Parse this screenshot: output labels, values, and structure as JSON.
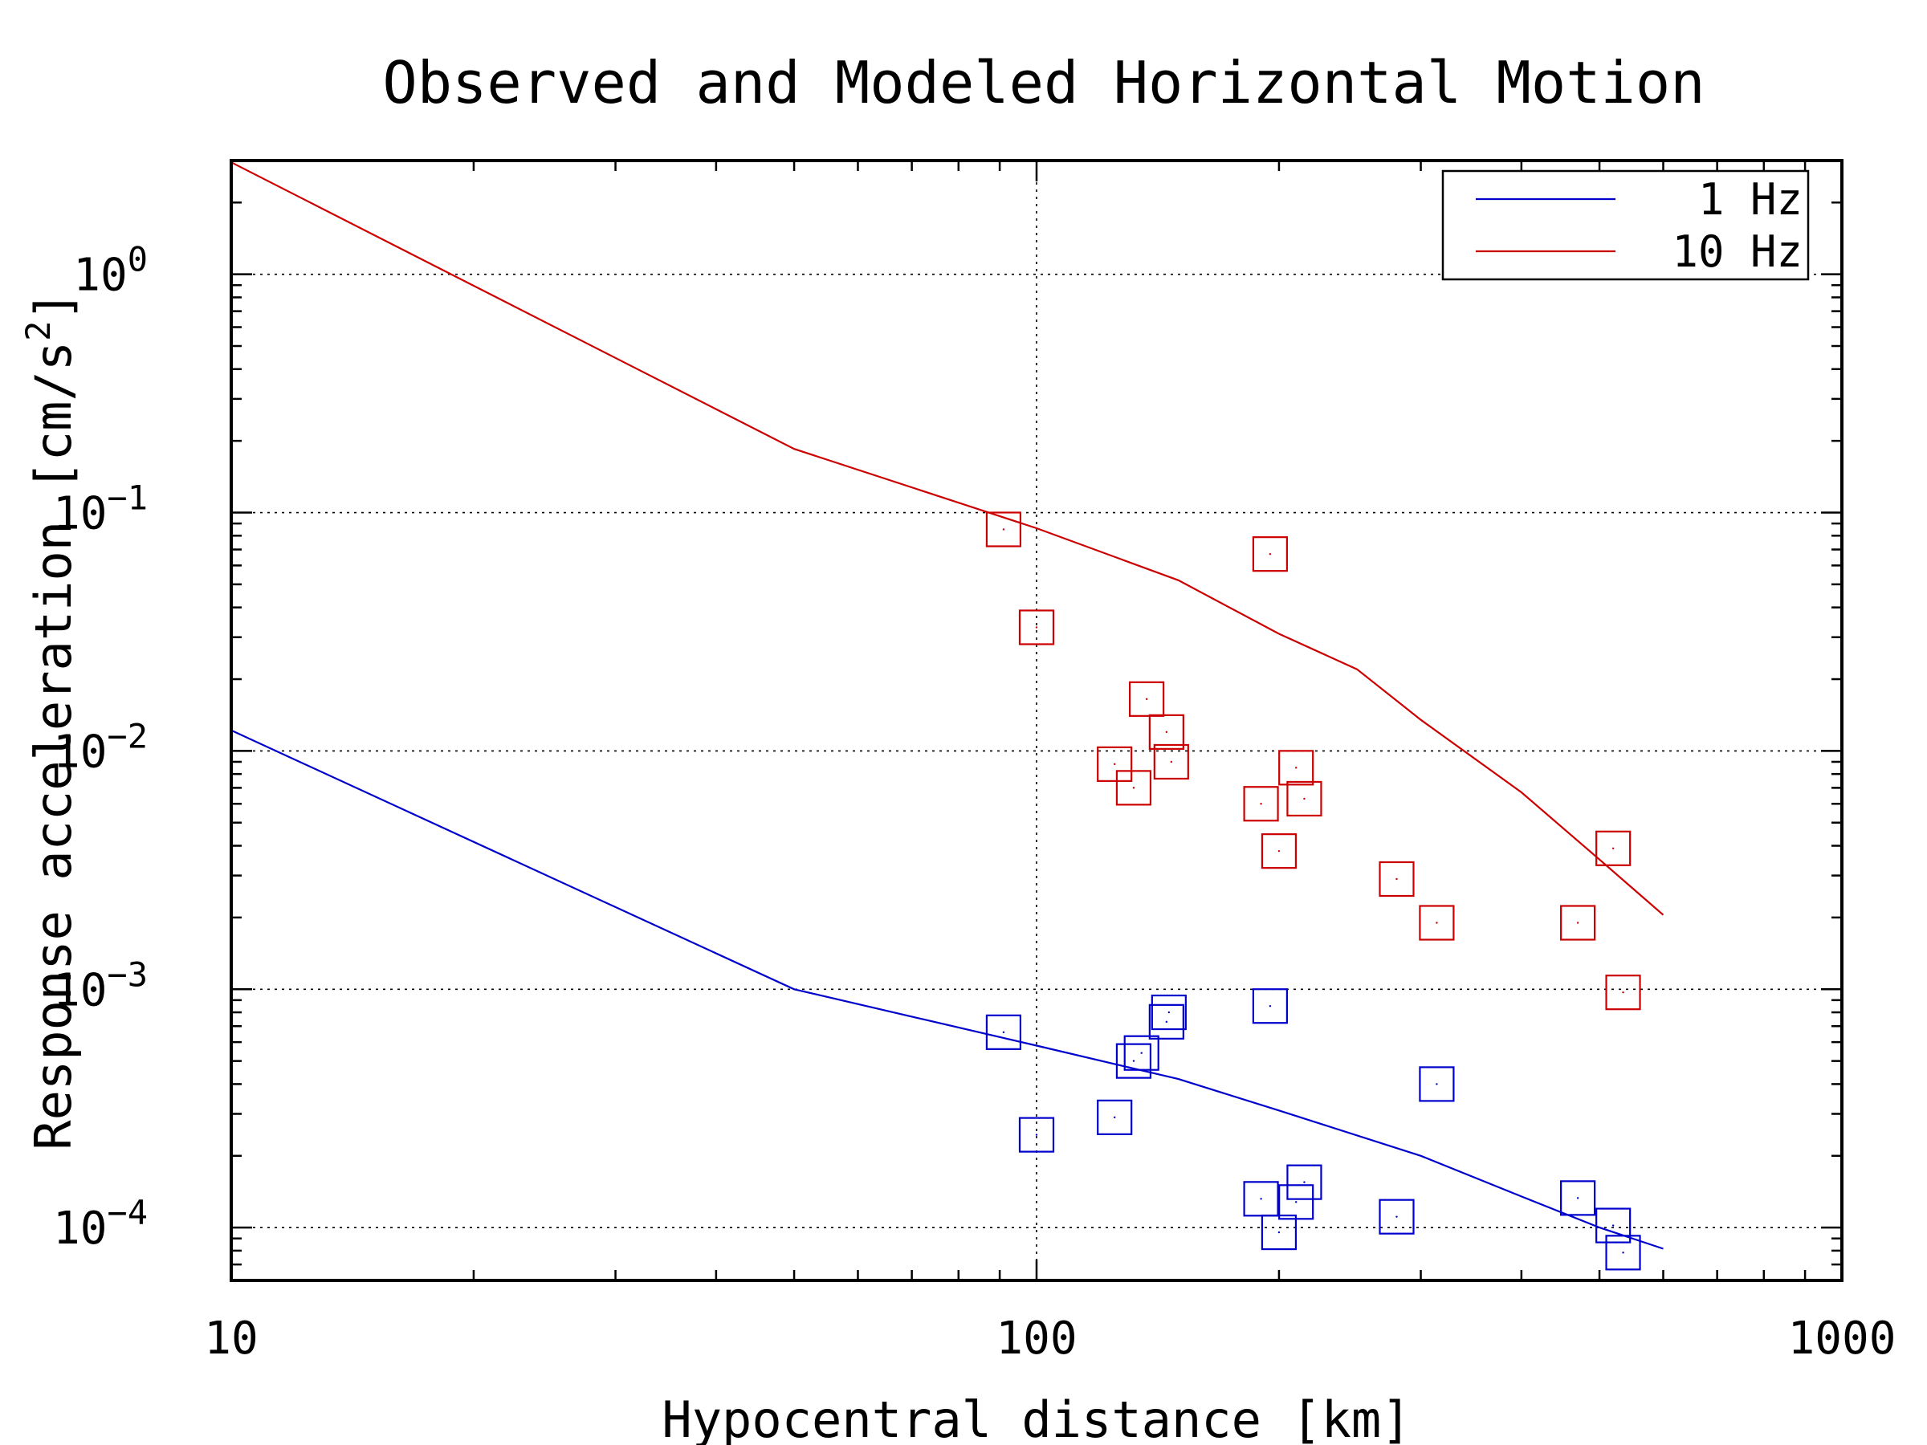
{
  "chart_data": {
    "type": "scatter",
    "title": "Observed and Modeled Horizontal Motion",
    "xlabel": "Hypocentral distance [km]",
    "ylabel": "Response acceleration [cm/s",
    "ylabel_sup": "2",
    "ylabel_close": "]",
    "xscale": "log",
    "yscale": "log",
    "xlim": [
      10,
      1000
    ],
    "ylim": [
      6e-05,
      3.0
    ],
    "x_ticks": [
      {
        "value": 10,
        "label": "10"
      },
      {
        "value": 100,
        "label": "100"
      },
      {
        "value": 1000,
        "label": "1000"
      }
    ],
    "y_ticks": [
      {
        "value": 1,
        "base": "10",
        "exp": "0"
      },
      {
        "value": 0.1,
        "base": "10",
        "exp": "−1"
      },
      {
        "value": 0.01,
        "base": "10",
        "exp": "−2"
      },
      {
        "value": 0.001,
        "base": "10",
        "exp": "−3"
      },
      {
        "value": 0.0001,
        "base": "10",
        "exp": "−4"
      }
    ],
    "grid": true,
    "legend_position": "top-right",
    "series": [
      {
        "name": "1 Hz",
        "color": "#0000cc",
        "model_line": [
          [
            10,
            0.0122
          ],
          [
            50,
            0.001
          ],
          [
            100,
            0.00058
          ],
          [
            150,
            0.00042
          ],
          [
            200,
            0.00031
          ],
          [
            300,
            0.0002
          ],
          [
            400,
            0.000135
          ],
          [
            500,
            0.0001
          ],
          [
            600,
            8.15e-05
          ]
        ],
        "observed": [
          [
            91,
            0.00066
          ],
          [
            100,
            0.000245
          ],
          [
            125,
            0.00029
          ],
          [
            132,
            0.0005
          ],
          [
            135,
            0.00054
          ],
          [
            145,
            0.00073
          ],
          [
            146,
            0.0008
          ],
          [
            190,
            0.000132
          ],
          [
            200,
            9.55e-05
          ],
          [
            195,
            0.00085
          ],
          [
            210,
            0.000128
          ],
          [
            215,
            0.000155
          ],
          [
            280,
            0.000111
          ],
          [
            314,
            0.0004
          ],
          [
            470,
            0.000133
          ],
          [
            520,
            0.000102
          ],
          [
            535,
            7.85e-05
          ]
        ]
      },
      {
        "name": "10 Hz",
        "color": "#cc0000",
        "model_line": [
          [
            10,
            2.95
          ],
          [
            50,
            0.185
          ],
          [
            100,
            0.086
          ],
          [
            150,
            0.052
          ],
          [
            200,
            0.031
          ],
          [
            250,
            0.022
          ],
          [
            300,
            0.0135
          ],
          [
            400,
            0.0067
          ],
          [
            500,
            0.0035
          ],
          [
            600,
            0.00205
          ]
        ],
        "observed": [
          [
            91,
            0.085
          ],
          [
            100,
            0.033
          ],
          [
            125,
            0.0088
          ],
          [
            132,
            0.007
          ],
          [
            137,
            0.0165
          ],
          [
            145,
            0.012
          ],
          [
            147,
            0.009
          ],
          [
            190,
            0.006
          ],
          [
            195,
            0.067
          ],
          [
            200,
            0.0038
          ],
          [
            210,
            0.0085
          ],
          [
            215,
            0.0063
          ],
          [
            280,
            0.0029
          ],
          [
            314,
            0.0019
          ],
          [
            470,
            0.0019
          ],
          [
            520,
            0.0039
          ],
          [
            535,
            0.00097
          ]
        ]
      }
    ]
  }
}
